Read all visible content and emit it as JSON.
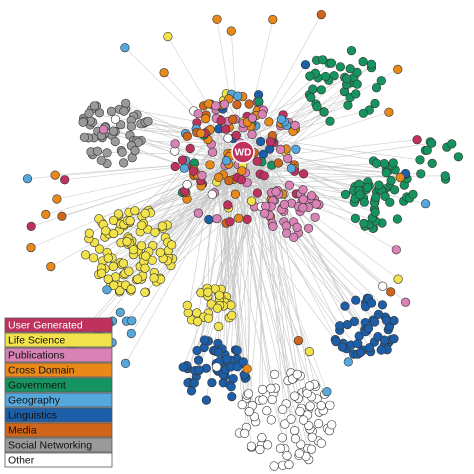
{
  "center_node": {
    "label": "WD",
    "color": "#c0325e"
  },
  "legend": {
    "items": [
      {
        "label": "User Generated",
        "color": "#c0325e"
      },
      {
        "label": "Life Science",
        "color": "#f2e34c"
      },
      {
        "label": "Publications",
        "color": "#d982b5"
      },
      {
        "label": "Cross Domain",
        "color": "#e8891a"
      },
      {
        "label": "Government",
        "color": "#16945f"
      },
      {
        "label": "Geography",
        "color": "#56a8dc"
      },
      {
        "label": "Linguistics",
        "color": "#1c5fa8"
      },
      {
        "label": "Media",
        "color": "#d0661a"
      },
      {
        "label": "Social Networking",
        "color": "#9a9a9a"
      },
      {
        "label": "Other",
        "color": "#ffffff"
      }
    ]
  }
}
